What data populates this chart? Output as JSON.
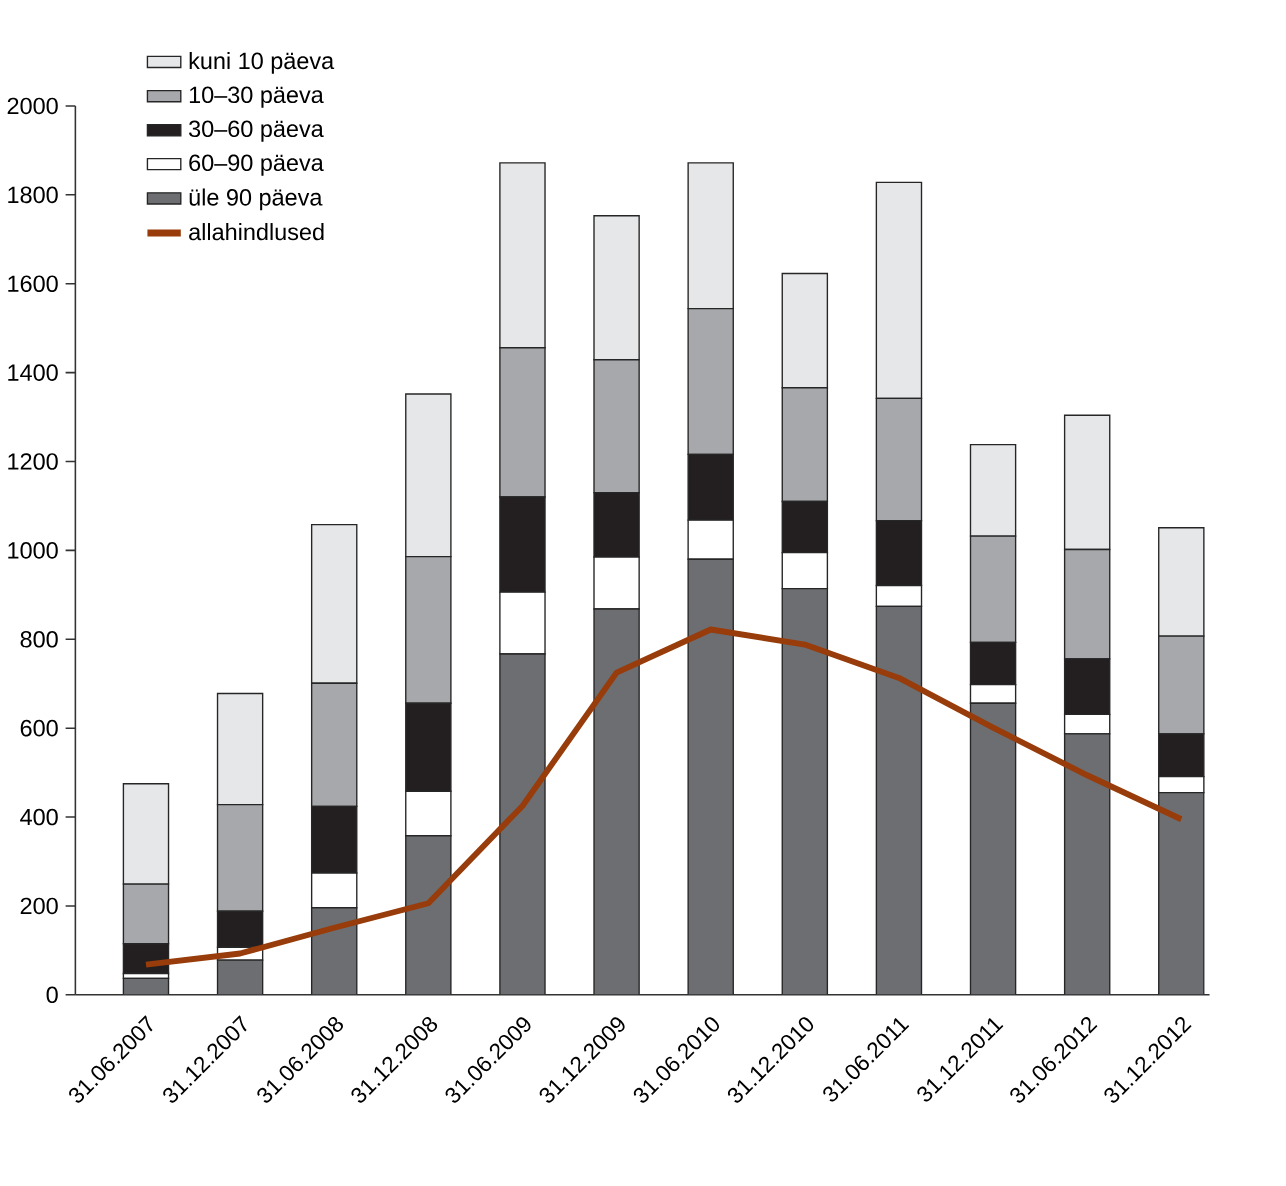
{
  "chart_data": {
    "type": "bar",
    "stacked": true,
    "legend": "top left",
    "ylim": [
      0,
      2000
    ],
    "yticks": [
      0,
      200,
      400,
      600,
      800,
      1000,
      1200,
      1400,
      1600,
      1800,
      2000
    ],
    "categories": [
      "31.06.2007",
      "31.12.2007",
      "31.06.2008",
      "31.12.2008",
      "31.06.2009",
      "31.12.2009",
      "31.06.2010",
      "31.12.2010",
      "31.06.2011",
      "31.12.2011",
      "31.06.2012",
      "31.12.2012"
    ],
    "series": [
      {
        "name": "üle 90 päeva",
        "color": "#6d6e71",
        "values": [
          37,
          78,
          196,
          358,
          767,
          868,
          980,
          914,
          874,
          656,
          587,
          455
        ]
      },
      {
        "name": "60–90 päeva",
        "color": "#ffffff",
        "values": [
          11,
          29,
          78,
          100,
          139,
          117,
          88,
          81,
          47,
          42,
          44,
          36
        ]
      },
      {
        "name": "30–60 päeva",
        "color": "#231f20",
        "values": [
          67,
          81,
          150,
          198,
          214,
          145,
          148,
          115,
          146,
          95,
          125,
          96
        ]
      },
      {
        "name": "10–30 päeva",
        "color": "#a7a8ab",
        "values": [
          134,
          240,
          277,
          330,
          336,
          299,
          328,
          256,
          275,
          239,
          246,
          220
        ]
      },
      {
        "name": "kuni 10 päeva",
        "color": "#e6e7e9",
        "values": [
          226,
          250,
          357,
          366,
          416,
          324,
          328,
          257,
          486,
          206,
          302,
          244
        ]
      },
      {
        "name": "allahindlused",
        "type": "line",
        "color": "#973c0a",
        "values": [
          68,
          93,
          151,
          206,
          425,
          725,
          822,
          788,
          713,
          601,
          494,
          395
        ]
      }
    ]
  }
}
